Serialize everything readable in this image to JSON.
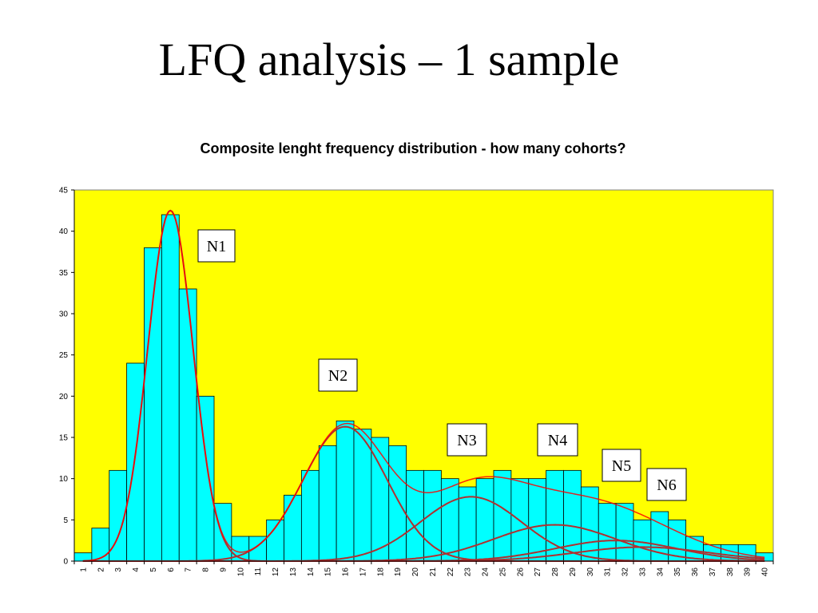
{
  "slide": {
    "title": "LFQ analysis – 1 sample"
  },
  "chart_data": {
    "type": "bar",
    "title": "Composite lenght frequency distribution - how many cohorts?",
    "xlabel": "",
    "ylabel": "",
    "ylim": [
      0,
      45
    ],
    "yticks": [
      0,
      5,
      10,
      15,
      20,
      25,
      30,
      35,
      40,
      45
    ],
    "grid": false,
    "plot_background": "#ffff00",
    "bar_color": "#00ffff",
    "curve_color": "#b03030",
    "fit_color": "#ff0000",
    "categories": [
      "1",
      "2",
      "3",
      "4",
      "5",
      "6",
      "7",
      "8",
      "9",
      "10",
      "11",
      "12",
      "13",
      "14",
      "15",
      "16",
      "17",
      "18",
      "19",
      "20",
      "21",
      "22",
      "23",
      "24",
      "25",
      "26",
      "27",
      "28",
      "29",
      "30",
      "31",
      "32",
      "33",
      "34",
      "35",
      "36",
      "37",
      "38",
      "39",
      "40"
    ],
    "values": [
      1,
      4,
      11,
      24,
      38,
      42,
      33,
      20,
      7,
      3,
      3,
      5,
      8,
      11,
      14,
      17,
      16,
      15,
      14,
      11,
      11,
      10,
      9,
      10,
      11,
      10,
      10,
      11,
      11,
      9,
      7,
      7,
      5,
      6,
      5,
      3,
      2,
      2,
      2,
      1
    ],
    "components": [
      {
        "label": "N1",
        "mean": 6.0,
        "sd": 1.3,
        "peak": 42.5
      },
      {
        "label": "N2",
        "mean": 16.0,
        "sd": 2.4,
        "peak": 16.3
      },
      {
        "label": "N3",
        "mean": 23.2,
        "sd": 2.9,
        "peak": 7.8
      },
      {
        "label": "N4",
        "mean": 28.0,
        "sd": 3.5,
        "peak": 4.4
      },
      {
        "label": "N5",
        "mean": 31.5,
        "sd": 3.5,
        "peak": 2.5
      },
      {
        "label": "N6",
        "mean": 33.0,
        "sd": 3.8,
        "peak": 1.7
      }
    ]
  }
}
